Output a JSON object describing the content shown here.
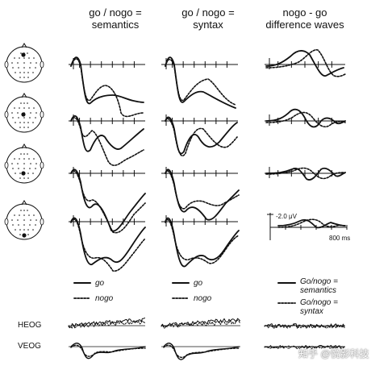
{
  "figure": {
    "headers": {
      "col1_line1": "go / nogo =",
      "col1_line2": "semantics",
      "col2_line1": "go / nogo =",
      "col2_line2": "syntax",
      "col3_line1": "nogo - go",
      "col3_line2": "difference waves"
    },
    "scale": {
      "amplitude": "-2.0  μV",
      "time": "800 ms"
    },
    "legend": {
      "go": "go",
      "nogo": "nogo",
      "diff_semantics_1": "Go/nogo =",
      "diff_semantics_2": "semantics",
      "diff_syntax_1": "Go/nogo =",
      "diff_syntax_2": "syntax"
    },
    "eog_labels": {
      "heog": "HEOG",
      "veog": "VEOG"
    },
    "watermark": "知乎 @悦影科技",
    "colors": {
      "ink": "#111111",
      "watermark": "#ffffff"
    }
  }
}
